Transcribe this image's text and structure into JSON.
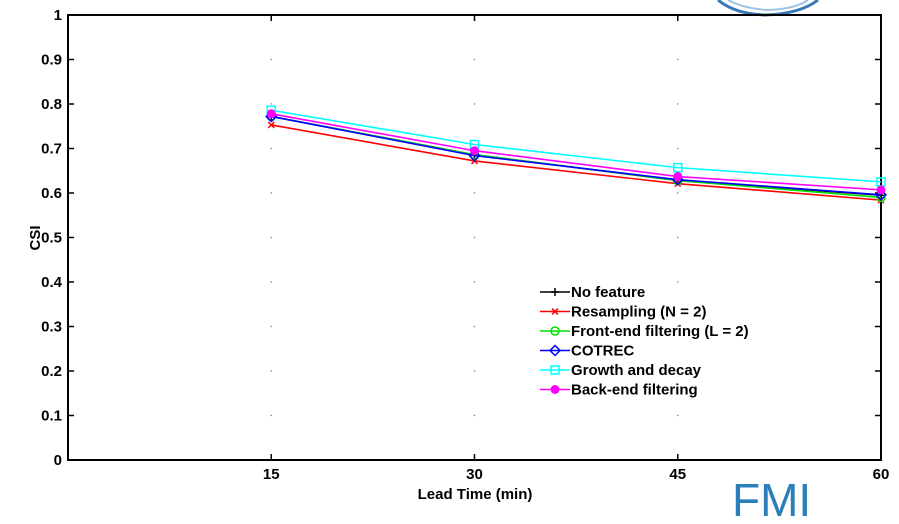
{
  "chart_data": {
    "type": "line",
    "title": "",
    "xlabel": "Lead Time (min)",
    "ylabel": "CSI",
    "x": [
      15,
      30,
      45,
      60
    ],
    "xlim": [
      0,
      60
    ],
    "ylim": [
      0,
      1
    ],
    "xticks": [
      15,
      30,
      45,
      60
    ],
    "yticks": [
      0,
      0.1,
      0.2,
      0.3,
      0.4,
      0.5,
      0.6,
      0.7,
      0.8,
      0.9,
      1
    ],
    "ytick_labels": [
      "0",
      "0.1",
      "0.2",
      "0.3",
      "0.4",
      "0.5",
      "0.6",
      "0.7",
      "0.8",
      "0.9",
      "1"
    ],
    "grid": "dotted",
    "legend_position": "lower-right",
    "series": [
      {
        "name": "No feature",
        "color": "#000000",
        "marker": "plus",
        "values": [
          0.772,
          0.686,
          0.628,
          0.595
        ]
      },
      {
        "name": "Resampling (N = 2)",
        "color": "#ff0000",
        "marker": "x",
        "values": [
          0.753,
          0.672,
          0.621,
          0.584
        ]
      },
      {
        "name": "Front-end filtering (L = 2)",
        "color": "#00e000",
        "marker": "circle",
        "values": [
          0.772,
          0.686,
          0.628,
          0.59
        ]
      },
      {
        "name": "COTREC",
        "color": "#0000ff",
        "marker": "diamond",
        "values": [
          0.772,
          0.684,
          0.63,
          0.596
        ]
      },
      {
        "name": "Growth and decay",
        "color": "#00ffff",
        "marker": "square",
        "values": [
          0.786,
          0.709,
          0.657,
          0.625
        ]
      },
      {
        "name": "Back-end filtering",
        "color": "#ff00ff",
        "marker": "dot",
        "values": [
          0.778,
          0.695,
          0.637,
          0.607
        ]
      }
    ]
  },
  "watermark": {
    "text": "FMI",
    "color": "#2a7fb8"
  }
}
